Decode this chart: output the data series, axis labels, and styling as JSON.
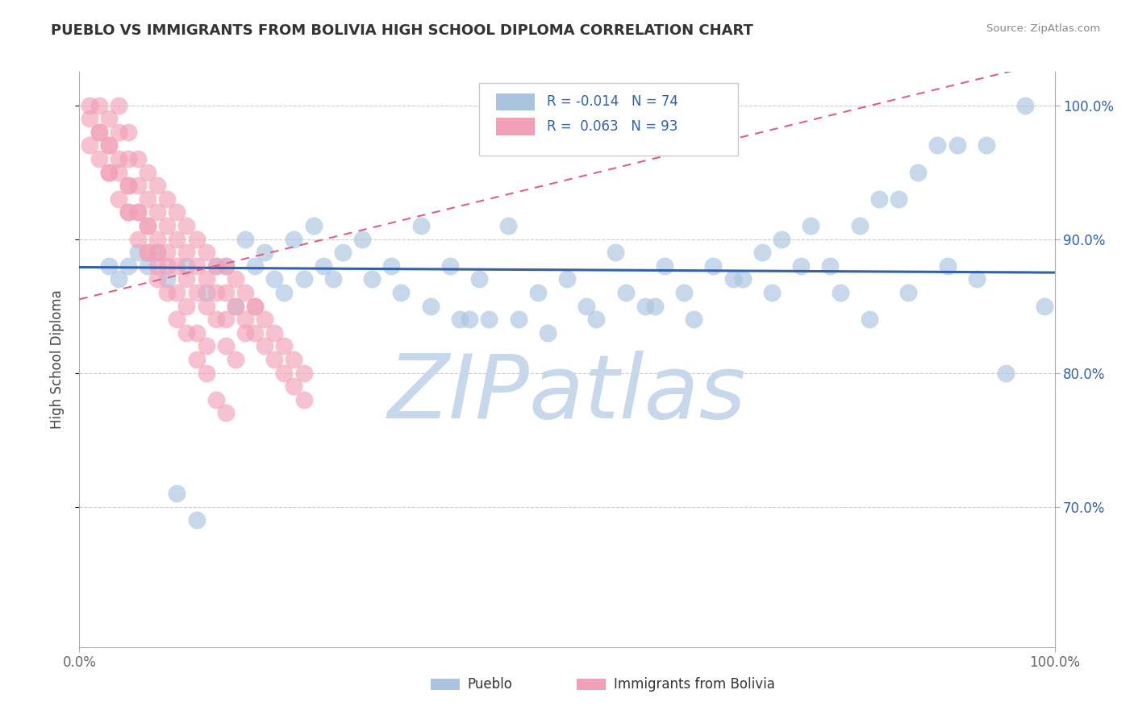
{
  "title": "PUEBLO VS IMMIGRANTS FROM BOLIVIA HIGH SCHOOL DIPLOMA CORRELATION CHART",
  "source": "Source: ZipAtlas.com",
  "ylabel": "High School Diploma",
  "blue_color": "#aac4e0",
  "pink_color": "#f2a0b8",
  "trend_blue_color": "#3060b0",
  "trend_pink_color": "#e06080",
  "watermark_color": "#c8d8ec",
  "watermark": "ZIPatlas",
  "xlim": [
    0.0,
    1.0
  ],
  "ylim": [
    0.595,
    1.025
  ],
  "ytick_vals": [
    0.7,
    0.8,
    0.9,
    1.0
  ],
  "ytick_labels": [
    "70.0%",
    "80.0%",
    "90.0%",
    "100.0%"
  ],
  "xtick_vals": [
    0.0,
    1.0
  ],
  "xtick_labels": [
    "0.0%",
    "100.0%"
  ],
  "pueblo_x": [
    0.97,
    0.93,
    0.9,
    0.88,
    0.86,
    0.84,
    0.82,
    0.8,
    0.77,
    0.75,
    0.72,
    0.7,
    0.68,
    0.65,
    0.62,
    0.6,
    0.58,
    0.55,
    0.52,
    0.5,
    0.47,
    0.44,
    0.41,
    0.38,
    0.35,
    0.32,
    0.29,
    0.26,
    0.24,
    0.22,
    0.2,
    0.18,
    0.16,
    0.14,
    0.13,
    0.11,
    0.09,
    0.08,
    0.07,
    0.06,
    0.05,
    0.04,
    0.03,
    0.15,
    0.17,
    0.19,
    0.21,
    0.23,
    0.25,
    0.27,
    0.3,
    0.33,
    0.36,
    0.39,
    0.42,
    0.45,
    0.48,
    0.53,
    0.56,
    0.59,
    0.63,
    0.67,
    0.71,
    0.74,
    0.78,
    0.81,
    0.85,
    0.89,
    0.92,
    0.95,
    0.99,
    0.1,
    0.12,
    0.4
  ],
  "pueblo_y": [
    1.0,
    0.97,
    0.97,
    0.97,
    0.95,
    0.93,
    0.93,
    0.91,
    0.88,
    0.91,
    0.9,
    0.89,
    0.87,
    0.88,
    0.86,
    0.88,
    0.85,
    0.89,
    0.85,
    0.87,
    0.86,
    0.91,
    0.87,
    0.88,
    0.91,
    0.88,
    0.9,
    0.87,
    0.91,
    0.9,
    0.87,
    0.88,
    0.85,
    0.88,
    0.86,
    0.88,
    0.87,
    0.89,
    0.88,
    0.89,
    0.88,
    0.87,
    0.88,
    0.88,
    0.9,
    0.89,
    0.86,
    0.87,
    0.88,
    0.89,
    0.87,
    0.86,
    0.85,
    0.84,
    0.84,
    0.84,
    0.83,
    0.84,
    0.86,
    0.85,
    0.84,
    0.87,
    0.86,
    0.88,
    0.86,
    0.84,
    0.86,
    0.88,
    0.87,
    0.8,
    0.85,
    0.71,
    0.69,
    0.84
  ],
  "bolivia_x": [
    0.01,
    0.01,
    0.02,
    0.02,
    0.03,
    0.03,
    0.03,
    0.04,
    0.04,
    0.04,
    0.05,
    0.05,
    0.05,
    0.05,
    0.06,
    0.06,
    0.06,
    0.07,
    0.07,
    0.07,
    0.07,
    0.08,
    0.08,
    0.08,
    0.08,
    0.09,
    0.09,
    0.09,
    0.1,
    0.1,
    0.1,
    0.11,
    0.11,
    0.11,
    0.12,
    0.12,
    0.12,
    0.13,
    0.13,
    0.13,
    0.14,
    0.14,
    0.14,
    0.15,
    0.15,
    0.15,
    0.15,
    0.16,
    0.16,
    0.17,
    0.17,
    0.18,
    0.18,
    0.19,
    0.19,
    0.2,
    0.2,
    0.21,
    0.21,
    0.22,
    0.22,
    0.23,
    0.23,
    0.02,
    0.04,
    0.06,
    0.08,
    0.1,
    0.12,
    0.14,
    0.03,
    0.05,
    0.07,
    0.09,
    0.11,
    0.13,
    0.15,
    0.16,
    0.17,
    0.18,
    0.01,
    0.02,
    0.03,
    0.04,
    0.05,
    0.06,
    0.07,
    0.08,
    0.09,
    0.1,
    0.11,
    0.12,
    0.13
  ],
  "bolivia_y": [
    0.99,
    0.97,
    1.0,
    0.98,
    0.99,
    0.97,
    0.95,
    1.0,
    0.98,
    0.96,
    0.98,
    0.96,
    0.94,
    0.92,
    0.96,
    0.94,
    0.92,
    0.95,
    0.93,
    0.91,
    0.89,
    0.94,
    0.92,
    0.9,
    0.88,
    0.93,
    0.91,
    0.89,
    0.92,
    0.9,
    0.88,
    0.91,
    0.89,
    0.87,
    0.9,
    0.88,
    0.86,
    0.89,
    0.87,
    0.85,
    0.88,
    0.86,
    0.84,
    0.88,
    0.86,
    0.84,
    0.82,
    0.87,
    0.85,
    0.86,
    0.84,
    0.85,
    0.83,
    0.84,
    0.82,
    0.83,
    0.81,
    0.82,
    0.8,
    0.81,
    0.79,
    0.8,
    0.78,
    0.96,
    0.93,
    0.9,
    0.87,
    0.84,
    0.81,
    0.78,
    0.95,
    0.92,
    0.89,
    0.86,
    0.83,
    0.8,
    0.77,
    0.81,
    0.83,
    0.85,
    1.0,
    0.98,
    0.97,
    0.95,
    0.94,
    0.92,
    0.91,
    0.89,
    0.88,
    0.86,
    0.85,
    0.83,
    0.82
  ],
  "blue_trend_x": [
    0.0,
    1.0
  ],
  "blue_trend_y": [
    0.879,
    0.875
  ],
  "pink_trend_x": [
    0.0,
    0.28
  ],
  "pink_trend_y": [
    0.855,
    0.905
  ]
}
